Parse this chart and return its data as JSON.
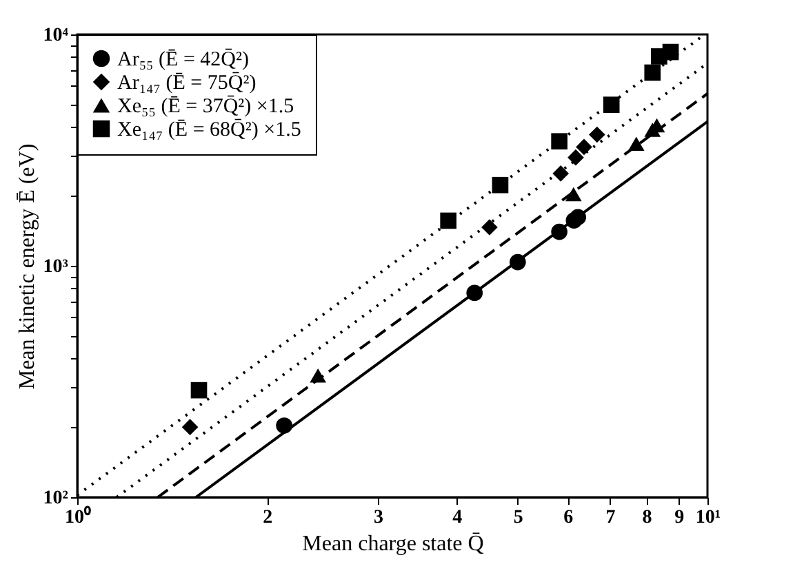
{
  "chart_data": {
    "type": "scatter",
    "xlabel": "Mean charge state Q̄",
    "ylabel": "Mean kinetic energy Ē (eV)",
    "log": "xy",
    "grid": false,
    "legend": "top left",
    "xlim": [
      1,
      10
    ],
    "ylim": [
      100,
      10000
    ],
    "xticks": [
      {
        "value": 1,
        "label": "10⁰"
      },
      2,
      3,
      4,
      5,
      6,
      7,
      8,
      9,
      {
        "value": 10,
        "label": "10¹"
      }
    ],
    "yticks": [
      {
        "value": 100,
        "label": "10²"
      },
      {
        "value": 200,
        "label": null
      },
      {
        "value": 300,
        "label": null
      },
      {
        "value": 400,
        "label": null
      },
      {
        "value": 500,
        "label": null
      },
      {
        "value": 600,
        "label": null
      },
      {
        "value": 700,
        "label": null
      },
      {
        "value": 800,
        "label": null
      },
      {
        "value": 900,
        "label": null
      },
      {
        "value": 1000,
        "label": "10³"
      },
      {
        "value": 2000,
        "label": null
      },
      {
        "value": 3000,
        "label": null
      },
      {
        "value": 4000,
        "label": null
      },
      {
        "value": 5000,
        "label": null
      },
      {
        "value": 6000,
        "label": null
      },
      {
        "value": 7000,
        "label": null
      },
      {
        "value": 8000,
        "label": null
      },
      {
        "value": 9000,
        "label": null
      },
      {
        "value": 10000,
        "label": "10⁴"
      }
    ],
    "series": [
      {
        "name": "Ar₅₅ (Ē = 42Q̄²)",
        "color": "#000000",
        "marker": "circle",
        "x": [
          2.13,
          4.27,
          5.0,
          5.82,
          6.14,
          6.23
        ],
        "values": [
          204,
          764,
          1038,
          1403,
          1570,
          1622
        ]
      },
      {
        "name": "Ar₁₄₇ (Ē = 75Q̄²)",
        "color": "#000000",
        "marker": "diamond",
        "x": [
          1.51,
          4.51,
          5.85,
          6.18,
          6.37,
          6.68
        ],
        "values": [
          201,
          1468,
          2506,
          2939,
          3264,
          3690
        ]
      },
      {
        "name": "Xe₅₅ (Ē = 37Q̄²) ×1.5",
        "color": "#000000",
        "marker": "triangle",
        "x": [
          2.41,
          6.13,
          7.71,
          8.18,
          8.31
        ],
        "values": [
          336,
          2041,
          3371,
          3868,
          4044
        ]
      },
      {
        "name": "Xe₁₄₇ (Ē = 68Q̄²) ×1.5",
        "color": "#000000",
        "marker": "square",
        "x": [
          1.56,
          3.88,
          4.69,
          5.82,
          7.04,
          8.18,
          8.38,
          8.74
        ],
        "values": [
          290,
          1567,
          2234,
          3452,
          4966,
          6839,
          8035,
          8395
        ]
      },
      {
        "type": "line",
        "color": "#000000",
        "line_style": "solid",
        "x": [
          1.543,
          10
        ],
        "values": [
          100,
          4200
        ]
      },
      {
        "type": "line",
        "color": "#000000",
        "line_style": "dashed",
        "x": [
          1.342,
          10
        ],
        "values": [
          100,
          5550
        ]
      },
      {
        "type": "line",
        "color": "#000000",
        "line_style": "dotted",
        "x": [
          1.155,
          10
        ],
        "values": [
          100,
          7500
        ]
      },
      {
        "type": "line",
        "color": "#000000",
        "line_style": "dotted",
        "x": [
          1,
          9.9
        ],
        "values": [
          102,
          10000
        ]
      }
    ]
  }
}
